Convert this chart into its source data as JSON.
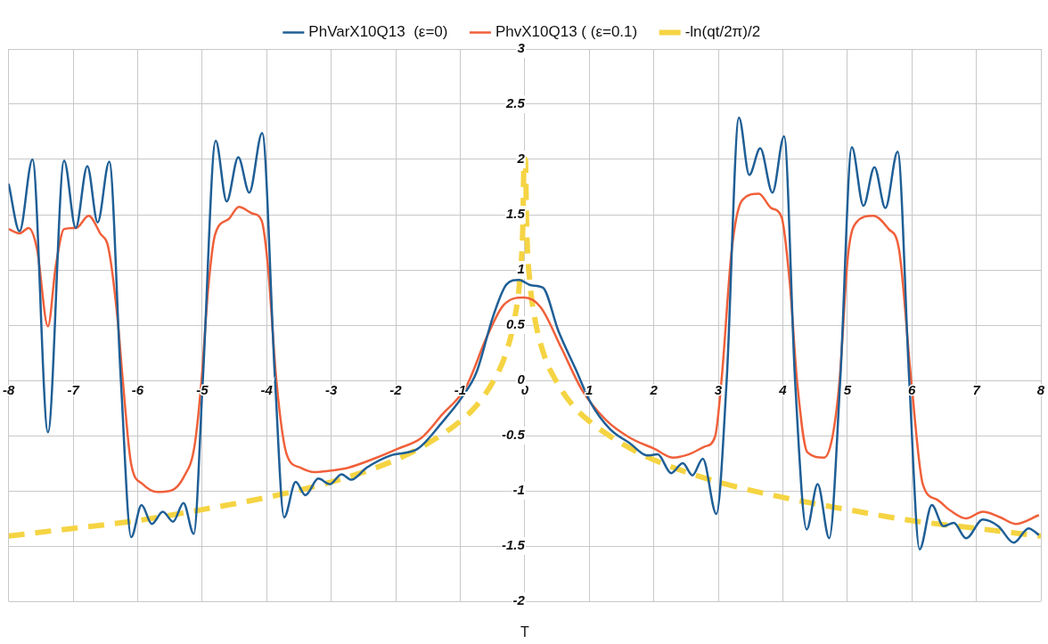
{
  "chart_data": {
    "type": "line",
    "xlabel": "T",
    "legend": "top",
    "grid": true,
    "marker": "none",
    "xlim": [
      -8,
      8
    ],
    "xticks": [
      -8,
      -7,
      -6,
      -5,
      -4,
      -3,
      -2,
      -1,
      0,
      1,
      2,
      3,
      4,
      5,
      6,
      7,
      8
    ],
    "ylim": [
      -2,
      3
    ],
    "yticks": [
      -2,
      -1.5,
      -1,
      -0.5,
      0,
      0.5,
      1,
      1.5,
      2,
      2.5,
      3
    ],
    "series": [
      {
        "name": "PhVarX10Q13  (ε=0)",
        "color": "#1f5f96",
        "line_style": "solid",
        "x": [
          -8.0,
          -7.83,
          -7.63,
          -7.39,
          -7.14,
          -6.96,
          -6.78,
          -6.62,
          -6.44,
          -6.26,
          -6.1,
          -5.94,
          -5.78,
          -5.61,
          -5.45,
          -5.29,
          -5.13,
          -4.99,
          -4.79,
          -4.62,
          -4.44,
          -4.27,
          -4.07,
          -3.87,
          -3.73,
          -3.55,
          -3.4,
          -3.2,
          -3.02,
          -2.84,
          -2.69,
          -2.45,
          -2.08,
          -1.66,
          -1.28,
          -0.97,
          -0.75,
          -0.49,
          -0.28,
          -0.09,
          0.1,
          0.28,
          0.52,
          0.79,
          1.02,
          1.32,
          1.63,
          1.9,
          2.06,
          2.27,
          2.45,
          2.6,
          2.76,
          2.97,
          3.13,
          3.32,
          3.48,
          3.65,
          3.84,
          4.02,
          4.19,
          4.37,
          4.54,
          4.72,
          4.89,
          5.07,
          5.25,
          5.42,
          5.59,
          5.78,
          5.96,
          6.12,
          6.31,
          6.49,
          6.65,
          6.84,
          7.1,
          7.34,
          7.58,
          7.81,
          7.97
        ],
        "values": [
          1.78,
          1.35,
          2.0,
          -0.47,
          1.99,
          1.38,
          1.94,
          1.43,
          1.98,
          0,
          -1.42,
          -1.13,
          -1.3,
          -1.19,
          -1.28,
          -1.11,
          -1.39,
          0,
          2.17,
          1.62,
          2.02,
          1.7,
          2.24,
          0,
          -1.24,
          -0.92,
          -1.04,
          -0.89,
          -0.94,
          -0.85,
          -0.9,
          -0.79,
          -0.68,
          -0.62,
          -0.38,
          -0.15,
          0.07,
          0.58,
          0.87,
          0.91,
          0.86,
          0.84,
          0.45,
          0.1,
          -0.2,
          -0.44,
          -0.57,
          -0.68,
          -0.67,
          -0.84,
          -0.75,
          -0.86,
          -0.71,
          -1.21,
          0,
          2.38,
          1.86,
          2.1,
          1.7,
          2.21,
          0,
          -1.35,
          -0.94,
          -1.43,
          0,
          2.11,
          1.58,
          1.93,
          1.56,
          2.07,
          0,
          -1.53,
          -1.13,
          -1.32,
          -1.29,
          -1.43,
          -1.26,
          -1.32,
          -1.47,
          -1.34,
          -1.4
        ]
      },
      {
        "name": "PhvX10Q13 ( (ε=0.1)",
        "color": "#f0603a",
        "line_style": "solid",
        "x": [
          -8.0,
          -7.83,
          -7.69,
          -7.56,
          -7.39,
          -7.27,
          -7.14,
          -6.95,
          -6.76,
          -6.58,
          -6.45,
          -6.31,
          -6.23,
          -6.1,
          -5.92,
          -5.7,
          -5.49,
          -5.28,
          -5.12,
          -5.01,
          -4.91,
          -4.8,
          -4.59,
          -4.43,
          -4.22,
          -4.08,
          -3.98,
          -3.85,
          -3.69,
          -3.48,
          -3.27,
          -3.05,
          -2.73,
          -2.34,
          -1.97,
          -1.6,
          -1.28,
          -0.91,
          -0.59,
          -0.33,
          -0.01,
          0.25,
          0.57,
          0.89,
          1.26,
          1.63,
          2.01,
          2.3,
          2.54,
          2.79,
          2.95,
          3.05,
          3.21,
          3.37,
          3.63,
          3.82,
          3.98,
          4.11,
          4.22,
          4.38,
          4.64,
          4.77,
          4.88,
          5.01,
          5.14,
          5.4,
          5.64,
          5.8,
          5.99,
          6.17,
          6.39,
          6.6,
          6.84,
          7.1,
          7.37,
          7.61,
          7.97
        ],
        "values": [
          1.37,
          1.33,
          1.38,
          1.19,
          0.49,
          1.03,
          1.37,
          1.38,
          1.49,
          1.33,
          1.19,
          0.55,
          0,
          -0.76,
          -0.94,
          -1.01,
          -1.0,
          -0.87,
          -0.6,
          0,
          0.81,
          1.32,
          1.46,
          1.57,
          1.51,
          1.45,
          1.03,
          0,
          -0.67,
          -0.79,
          -0.83,
          -0.82,
          -0.79,
          -0.71,
          -0.62,
          -0.52,
          -0.31,
          -0.06,
          0.39,
          0.68,
          0.75,
          0.66,
          0.29,
          -0.09,
          -0.36,
          -0.52,
          -0.62,
          -0.7,
          -0.67,
          -0.6,
          -0.51,
          0,
          1.19,
          1.63,
          1.69,
          1.56,
          1.48,
          0.87,
          0,
          -0.65,
          -0.7,
          -0.51,
          0,
          1.13,
          1.43,
          1.49,
          1.37,
          1.19,
          0,
          -0.94,
          -1.08,
          -1.18,
          -1.25,
          -1.19,
          -1.24,
          -1.3,
          -1.22
        ]
      },
      {
        "name": "-ln(qt/2π)/2",
        "color": "#f5d443",
        "line_style": "dashed",
        "x": [
          -8,
          -7,
          -6,
          -5,
          -4,
          -3,
          -2,
          -1.5,
          -1,
          -0.75,
          -0.5,
          -0.3,
          -0.15,
          -0.08,
          -0.03,
          -0.01,
          0.01,
          0.03,
          0.08,
          0.15,
          0.3,
          0.5,
          0.75,
          1,
          1.5,
          2,
          3,
          4,
          5,
          6,
          7,
          8
        ],
        "values": [
          -1.41,
          -1.34,
          -1.27,
          -1.17,
          -1.06,
          -0.92,
          -0.72,
          -0.57,
          -0.37,
          -0.23,
          -0.02,
          0.23,
          0.58,
          0.89,
          1.38,
          2.0,
          2.0,
          1.38,
          0.89,
          0.58,
          0.23,
          -0.02,
          -0.23,
          -0.37,
          -0.57,
          -0.72,
          -0.92,
          -1.06,
          -1.17,
          -1.27,
          -1.34,
          -1.41
        ]
      }
    ]
  }
}
